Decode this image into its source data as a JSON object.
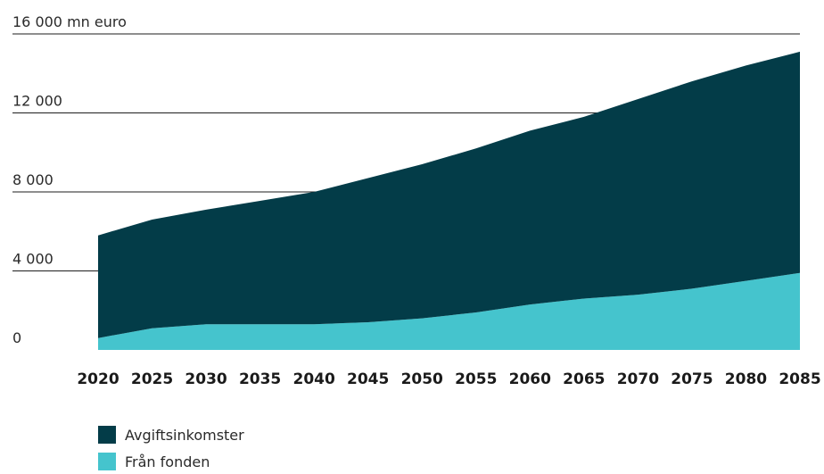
{
  "chart_data": {
    "type": "area",
    "stacked": true,
    "unit_label": "16 000 mn euro",
    "y_ticks": [
      {
        "value": 0,
        "label": "0"
      },
      {
        "value": 4000,
        "label": "4 000"
      },
      {
        "value": 8000,
        "label": "8 000"
      },
      {
        "value": 12000,
        "label": "12 000"
      },
      {
        "value": 16000,
        "label": "16 000 mn euro"
      }
    ],
    "ylim": [
      0,
      16000
    ],
    "xlim": [
      2020,
      2085
    ],
    "x_ticks": [
      "2020",
      "2025",
      "2030",
      "2035",
      "2040",
      "2045",
      "2050",
      "2055",
      "2060",
      "2065",
      "2070",
      "2075",
      "2080",
      "2085"
    ],
    "x": [
      2020,
      2025,
      2030,
      2035,
      2040,
      2045,
      2050,
      2055,
      2060,
      2065,
      2070,
      2075,
      2080,
      2085
    ],
    "series": [
      {
        "name": "Från fonden",
        "color": "#45c4cd",
        "values": [
          600,
          1100,
          1300,
          1300,
          1300,
          1400,
          1600,
          1900,
          2300,
          2600,
          2800,
          3100,
          3500,
          3900
        ]
      },
      {
        "name": "Avgiftsinkomster",
        "color": "#033c48",
        "values": [
          5200,
          5500,
          5800,
          6250,
          6700,
          7300,
          7800,
          8300,
          8800,
          9200,
          9900,
          10500,
          10900,
          11200
        ]
      }
    ],
    "grid": "horizontal",
    "legend_position": "bottom-left"
  },
  "legend": [
    {
      "label": "Avgiftsinkomster",
      "color": "#033c48"
    },
    {
      "label": "Från fonden",
      "color": "#45c4cd"
    }
  ]
}
